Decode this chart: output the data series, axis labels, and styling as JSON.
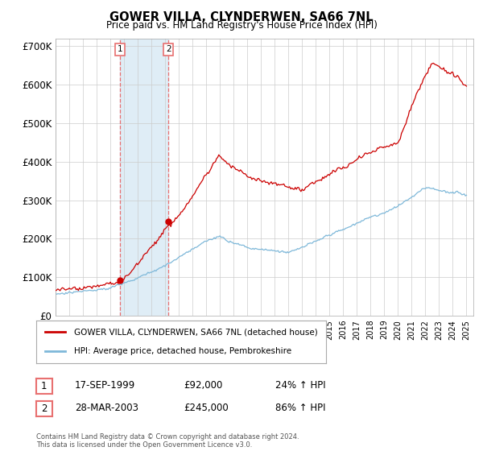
{
  "title": "GOWER VILLA, CLYNDERWEN, SA66 7NL",
  "subtitle": "Price paid vs. HM Land Registry's House Price Index (HPI)",
  "ylabel_values": [
    "£0",
    "£100K",
    "£200K",
    "£300K",
    "£400K",
    "£500K",
    "£600K",
    "£700K"
  ],
  "ylim": [
    0,
    720000
  ],
  "xlim_start": 1995.0,
  "xlim_end": 2025.5,
  "sale1_date": 1999.71,
  "sale1_price": 92000,
  "sale1_label": "1",
  "sale2_date": 2003.24,
  "sale2_price": 245000,
  "sale2_label": "2",
  "hpi_line_color": "#7eb8d9",
  "price_line_color": "#cc0000",
  "sale_marker_color": "#cc0000",
  "vline_color": "#e87070",
  "shade_color": "#daeaf5",
  "legend_label1": "GOWER VILLA, CLYNDERWEN, SA66 7NL (detached house)",
  "legend_label2": "HPI: Average price, detached house, Pembrokeshire",
  "table_row1": [
    "1",
    "17-SEP-1999",
    "£92,000",
    "24% ↑ HPI"
  ],
  "table_row2": [
    "2",
    "28-MAR-2003",
    "£245,000",
    "86% ↑ HPI"
  ],
  "footnote": "Contains HM Land Registry data © Crown copyright and database right 2024.\nThis data is licensed under the Open Government Licence v3.0.",
  "background_color": "#ffffff",
  "grid_color": "#cccccc"
}
